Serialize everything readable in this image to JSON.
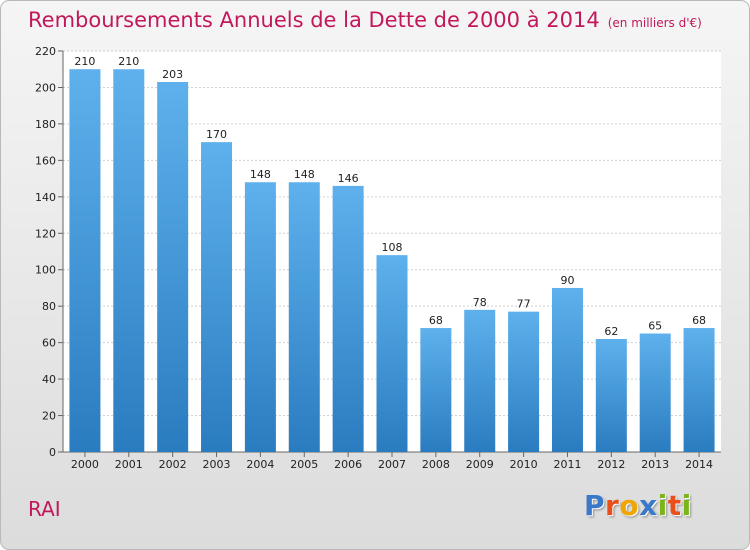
{
  "title": "Remboursements Annuels de la Dette de 2000 à 2014",
  "unit": "(en milliers d'€)",
  "commune": "RAI",
  "logo": {
    "text": "Proxiti",
    "letters": [
      {
        "ch": "P",
        "color": "#3a78c9"
      },
      {
        "ch": "r",
        "color": "#e94e1b"
      },
      {
        "ch": "o",
        "color": "#f0a500"
      },
      {
        "ch": "x",
        "color": "#3a78c9"
      },
      {
        "ch": "i",
        "color": "#7cb518"
      },
      {
        "ch": "t",
        "color": "#e94e1b"
      },
      {
        "ch": "i",
        "color": "#7cb518"
      }
    ]
  },
  "colors": {
    "bar_top": "#5eb1ec",
    "bar_bottom": "#2a7cc0",
    "title": "#c2185b"
  },
  "chart_data": {
    "type": "bar",
    "categories": [
      "2000",
      "2001",
      "2002",
      "2003",
      "2004",
      "2005",
      "2006",
      "2007",
      "2008",
      "2009",
      "2010",
      "2011",
      "2012",
      "2013",
      "2014"
    ],
    "values": [
      210,
      210,
      203,
      170,
      148,
      148,
      146,
      108,
      68,
      78,
      77,
      90,
      62,
      65,
      68
    ],
    "ylim": [
      0,
      220
    ],
    "yticks": [
      0,
      20,
      40,
      60,
      80,
      100,
      120,
      140,
      160,
      180,
      200,
      220
    ],
    "grid": true,
    "title": "Remboursements Annuels de la Dette de 2000 à 2014",
    "xlabel": "",
    "ylabel": ""
  }
}
